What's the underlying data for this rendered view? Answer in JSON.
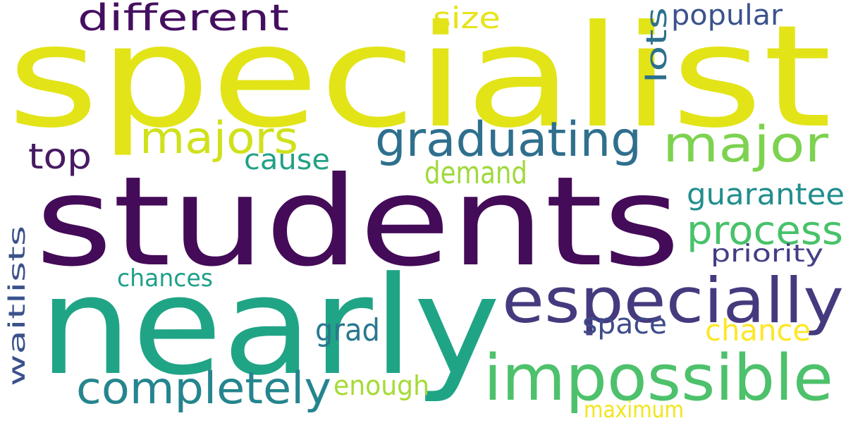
{
  "words": [
    {
      "text": "specialist",
      "color": "#e2e418"
    },
    {
      "text": "students",
      "color": "#440b58"
    },
    {
      "text": "nearly",
      "color": "#20a486"
    },
    {
      "text": "especially",
      "color": "#463a7e"
    },
    {
      "text": "impossible",
      "color": "#4dc16b"
    },
    {
      "text": "graduating",
      "color": "#2f6f8e"
    },
    {
      "text": "major",
      "color": "#7dd250"
    },
    {
      "text": "majors",
      "color": "#d0e11c"
    },
    {
      "text": "different",
      "color": "#450f60"
    },
    {
      "text": "completely",
      "color": "#25858e"
    },
    {
      "text": "process",
      "color": "#48c26a"
    },
    {
      "text": "top",
      "color": "#471b63"
    },
    {
      "text": "cause",
      "color": "#22a185"
    },
    {
      "text": "demand",
      "color": "#a0d93b"
    },
    {
      "text": "guarantee",
      "color": "#218e8d"
    },
    {
      "text": "priority",
      "color": "#433e85"
    },
    {
      "text": "waitlists",
      "color": "#3b528b"
    },
    {
      "text": "chances",
      "color": "#1fa088"
    },
    {
      "text": "grad",
      "color": "#2a788e"
    },
    {
      "text": "space",
      "color": "#3e4c8a"
    },
    {
      "text": "chance",
      "color": "#fde725"
    },
    {
      "text": "enough",
      "color": "#a5db36"
    },
    {
      "text": "maximum",
      "color": "#f1e51d"
    },
    {
      "text": "size",
      "color": "#e7e419"
    },
    {
      "text": "lots",
      "color": "#2d708e"
    },
    {
      "text": "popular",
      "color": "#3b528b"
    }
  ]
}
